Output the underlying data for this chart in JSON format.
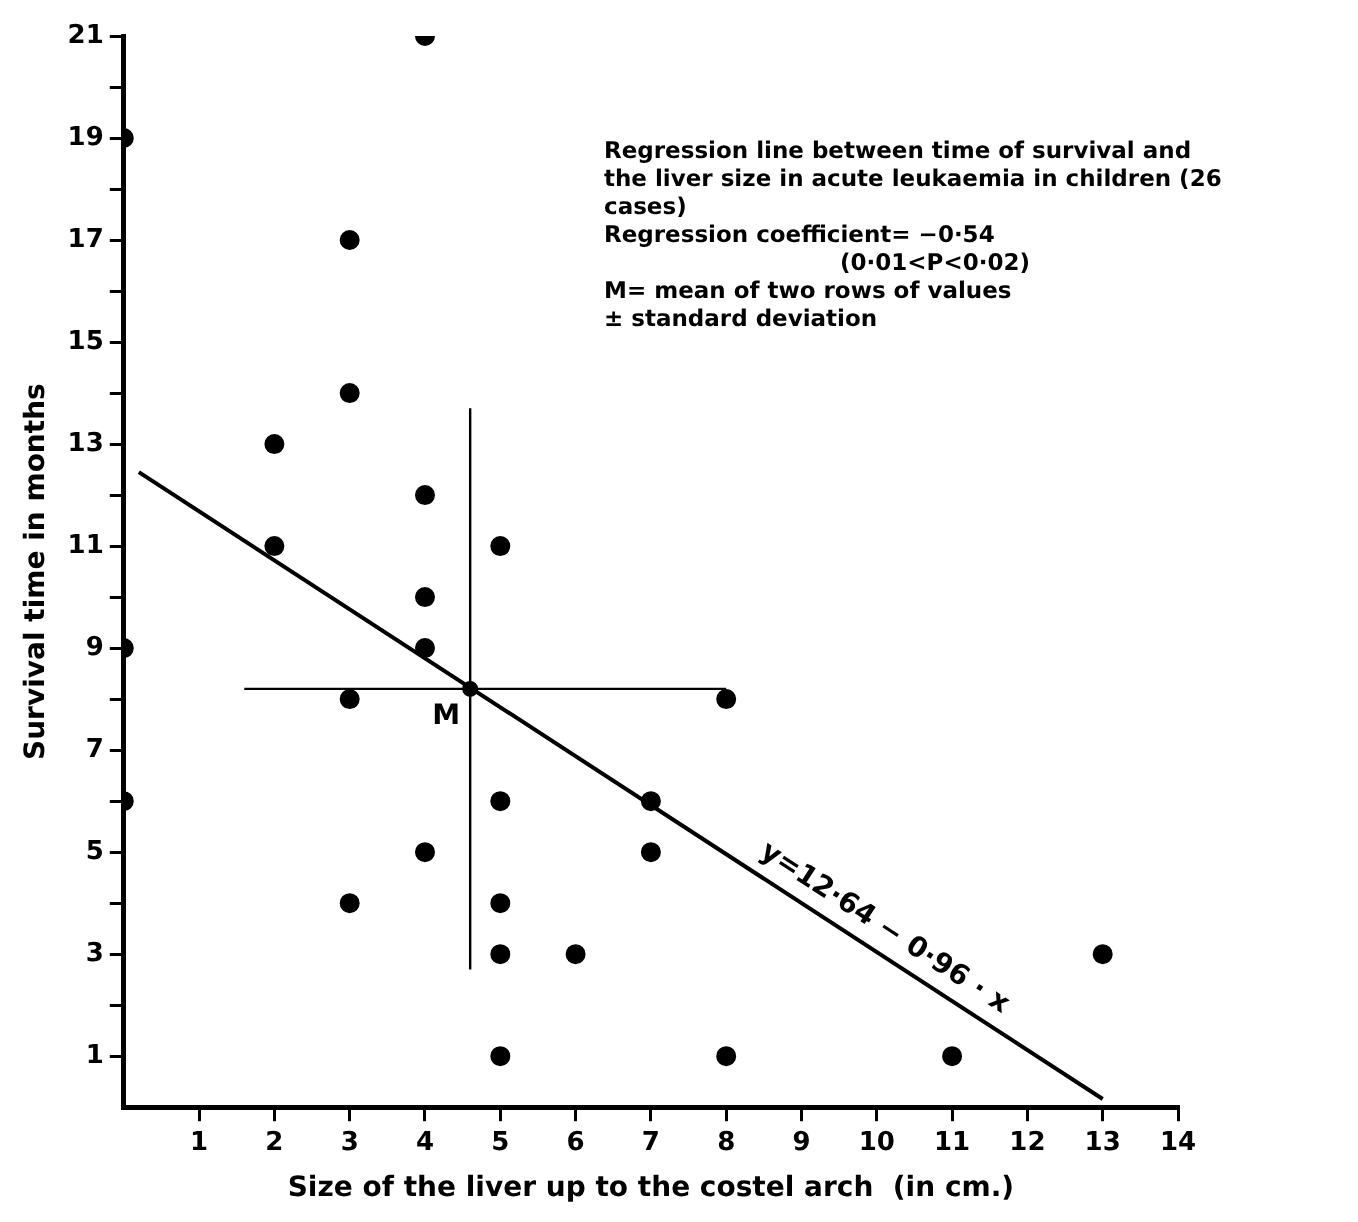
{
  "chart_data": {
    "type": "scatter",
    "xlabel": "Size of the liver up to the costel arch  (in cm.)",
    "ylabel": "Survival time in months",
    "xlim": [
      0,
      14
    ],
    "xticks": [
      1,
      2,
      3,
      4,
      5,
      6,
      7,
      8,
      9,
      10,
      11,
      12,
      13,
      14
    ],
    "ylim": [
      0,
      21
    ],
    "yticks": [
      1,
      {
        "value": 2,
        "label": null
      },
      3,
      {
        "value": 4,
        "label": null
      },
      5,
      {
        "value": 6,
        "label": null
      },
      7,
      {
        "value": 8,
        "label": null
      },
      9,
      {
        "value": 10,
        "label": null
      },
      11,
      {
        "value": 12,
        "label": null
      },
      13,
      {
        "value": 14,
        "label": null
      },
      15,
      {
        "value": 16,
        "label": null
      },
      17,
      {
        "value": 18,
        "label": null
      },
      19,
      {
        "value": 20,
        "label": null
      },
      21
    ],
    "grid": false,
    "legend": false,
    "marker": "circle",
    "series": [
      {
        "color": "#000000",
        "x": [
          0,
          0,
          0,
          4,
          3,
          3,
          2,
          2,
          4,
          5,
          4,
          4,
          3,
          8,
          7,
          5,
          7,
          4,
          5,
          3,
          5,
          6,
          13,
          5,
          8,
          11
        ],
        "values": [
          19,
          9,
          6,
          21,
          17,
          14,
          13,
          11,
          12,
          11,
          10,
          9,
          8,
          8,
          6,
          6,
          5,
          5,
          4,
          4,
          3,
          3,
          3,
          1,
          1,
          1
        ]
      },
      {
        "type": "line",
        "color": "#000000",
        "marker": "none",
        "x": [
          0.2,
          13
        ],
        "values": [
          12.45,
          0.16
        ]
      },
      {
        "color": "#000000",
        "x": [
          4.6
        ],
        "values": [
          8.2
        ],
        "errors": [
          [
            2.7,
            13.7
          ]
        ],
        "xerrors": [
          [
            1.6,
            8.0
          ]
        ]
      }
    ],
    "annotations": [
      "Regression line between time of survival and the liver size in acute leukaemia in children (26 cases)",
      "Regression coefficient= −0·54",
      "(0·01<P<0·02)",
      "M= mean of two rows of values",
      "±   standard deviation",
      "M",
      "y=12·64 − 0·96 · x"
    ]
  }
}
